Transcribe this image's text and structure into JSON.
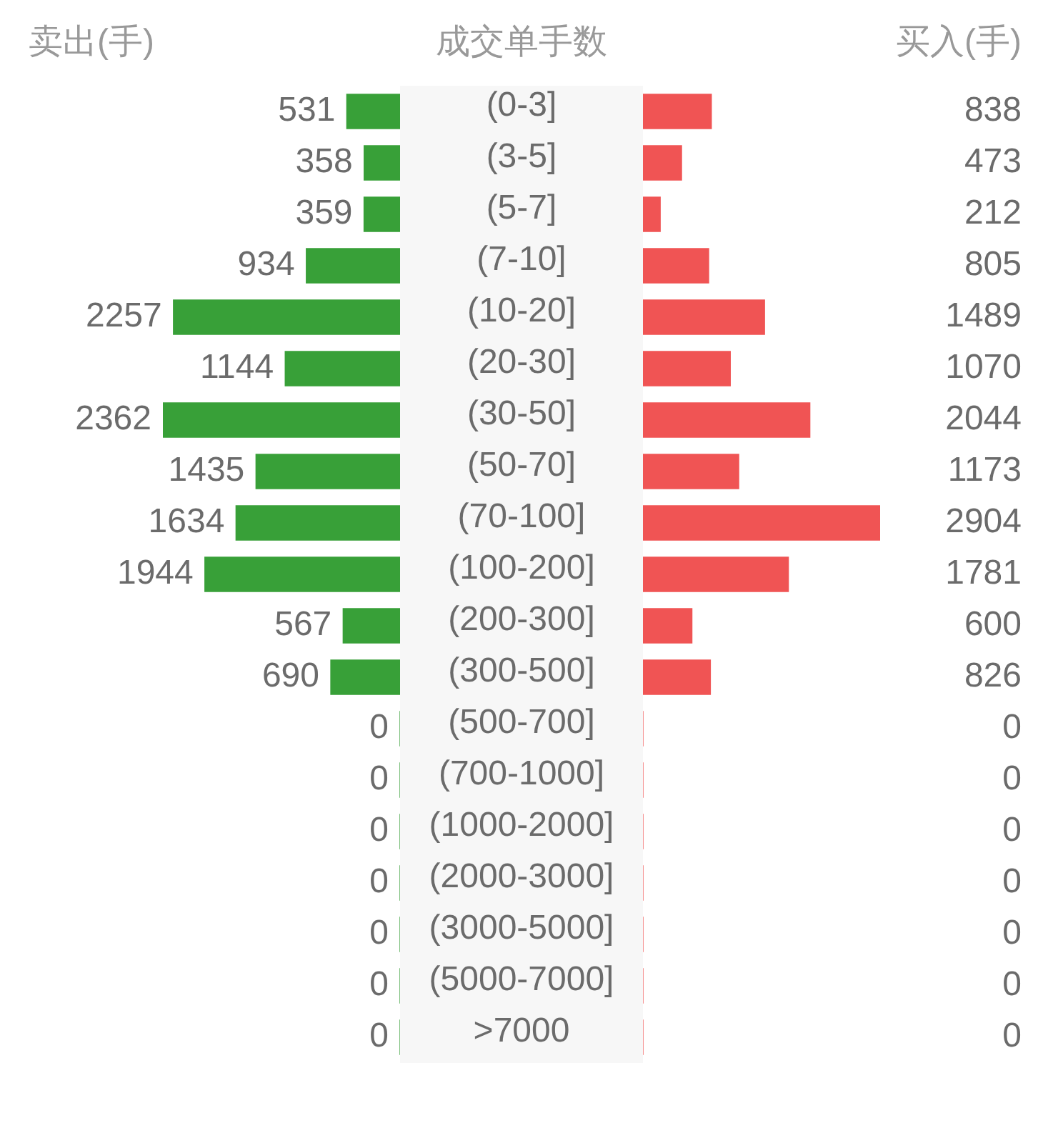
{
  "chart_data": [
    {
      "type": "bar",
      "orientation": "horizontal",
      "title": "卖出(手)",
      "ylabel": "成交单手数",
      "tick_labels": "y",
      "data_labels": true,
      "color": "#38a038",
      "xlim": [
        2362,
        0
      ],
      "categories": [
        "(0-3]",
        "(3-5]",
        "(5-7]",
        "(7-10]",
        "(10-20]",
        "(20-30]",
        "(30-50]",
        "(50-70]",
        "(70-100]",
        "(100-200]",
        "(200-300]",
        "(300-500]",
        "(500-700]",
        "(700-1000]",
        "(1000-2000]",
        "(2000-3000]",
        "(3000-5000]",
        "(5000-7000]",
        ">7000"
      ],
      "values": [
        531,
        358,
        359,
        934,
        2257,
        1144,
        2362,
        1435,
        1634,
        1944,
        567,
        690,
        0,
        0,
        0,
        0,
        0,
        0,
        0
      ]
    },
    {
      "type": "bar",
      "orientation": "horizontal",
      "title": "买入(手)",
      "data_labels": true,
      "tick_labels": false,
      "color": "#f05454",
      "xlim": [
        0,
        2904
      ],
      "values": [
        838,
        473,
        212,
        805,
        1489,
        1070,
        2044,
        1173,
        2904,
        1781,
        600,
        826,
        0,
        0,
        0,
        0,
        0,
        0,
        0
      ]
    }
  ]
}
